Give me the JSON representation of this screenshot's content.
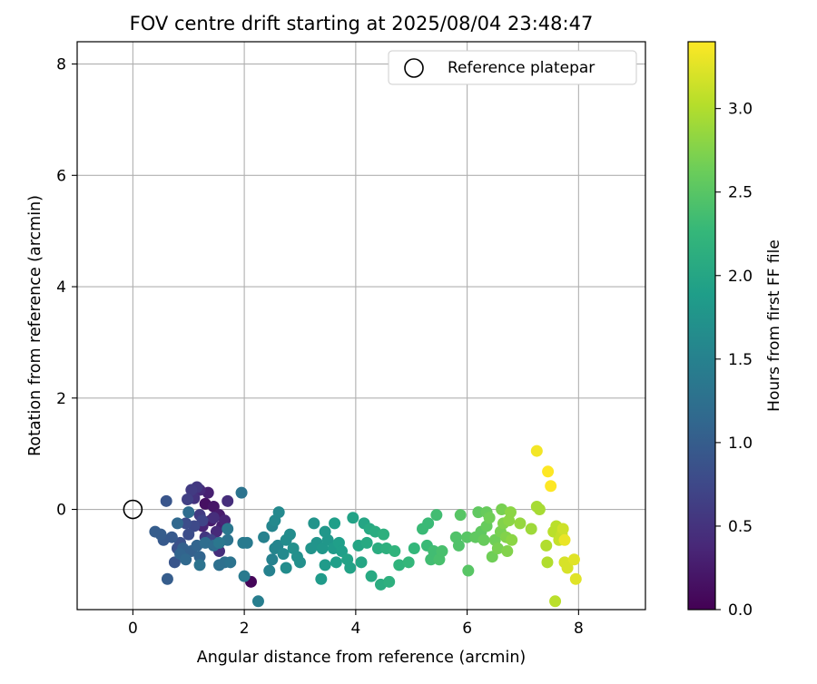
{
  "chart_data": {
    "type": "scatter",
    "title": "FOV centre drift starting at 2025/08/04 23:48:47",
    "xlabel": "Angular distance from reference (arcmin)",
    "ylabel": "Rotation from reference (arcmin)",
    "xlim": [
      -1.0,
      9.2
    ],
    "ylim": [
      -1.8,
      8.4
    ],
    "xticks": [
      "0",
      "2",
      "4",
      "6",
      "8"
    ],
    "yticks": [
      "0",
      "2",
      "4",
      "6",
      "8"
    ],
    "grid": true,
    "legend": {
      "placement": "top-right",
      "entries": [
        "Reference platepar"
      ]
    },
    "reference_point": {
      "x": 0,
      "y": 0
    },
    "colorbar": {
      "label": "Hours from first FF file",
      "min": 0.0,
      "max": 3.4,
      "ticks": [
        "0.0",
        "0.5",
        "1.0",
        "1.5",
        "2.0",
        "2.5",
        "3.0"
      ],
      "colormap": [
        "#440154",
        "#482878",
        "#3e4989",
        "#31688e",
        "#26828e",
        "#1f9e89",
        "#35b779",
        "#6ece58",
        "#b5de2b",
        "#fde725"
      ]
    },
    "points": [
      {
        "x": 2.12,
        "y": -1.3,
        "t": 0.05
      },
      {
        "x": 1.3,
        "y": 0.1,
        "t": 0.15
      },
      {
        "x": 1.45,
        "y": 0.05,
        "t": 0.2
      },
      {
        "x": 1.55,
        "y": -0.1,
        "t": 0.25
      },
      {
        "x": 1.4,
        "y": -0.2,
        "t": 0.25
      },
      {
        "x": 1.6,
        "y": -0.3,
        "t": 0.3
      },
      {
        "x": 1.35,
        "y": 0.3,
        "t": 0.3
      },
      {
        "x": 1.25,
        "y": -0.3,
        "t": 0.35
      },
      {
        "x": 1.65,
        "y": -0.2,
        "t": 0.35
      },
      {
        "x": 1.5,
        "y": -0.4,
        "t": 0.4
      },
      {
        "x": 1.2,
        "y": 0.35,
        "t": 0.4
      },
      {
        "x": 1.55,
        "y": -0.75,
        "t": 0.45
      },
      {
        "x": 1.45,
        "y": -0.15,
        "t": 0.45
      },
      {
        "x": 1.7,
        "y": 0.15,
        "t": 0.45
      },
      {
        "x": 1.1,
        "y": 0.2,
        "t": 0.5
      },
      {
        "x": 1.3,
        "y": -0.5,
        "t": 0.55
      },
      {
        "x": 1.15,
        "y": 0.4,
        "t": 0.55
      },
      {
        "x": 1.05,
        "y": 0.35,
        "t": 0.6
      },
      {
        "x": 1.2,
        "y": -0.1,
        "t": 0.6
      },
      {
        "x": 0.98,
        "y": 0.18,
        "t": 0.65
      },
      {
        "x": 1.4,
        "y": -0.55,
        "t": 0.7
      },
      {
        "x": 1.25,
        "y": -0.2,
        "t": 0.7
      },
      {
        "x": 1.1,
        "y": -0.3,
        "t": 0.75
      },
      {
        "x": 1.0,
        "y": -0.45,
        "t": 0.8
      },
      {
        "x": 0.95,
        "y": -0.25,
        "t": 0.8
      },
      {
        "x": 0.85,
        "y": -0.6,
        "t": 0.85
      },
      {
        "x": 0.8,
        "y": -0.7,
        "t": 0.85
      },
      {
        "x": 0.75,
        "y": -0.95,
        "t": 0.9
      },
      {
        "x": 0.6,
        "y": 0.15,
        "t": 0.9
      },
      {
        "x": 0.7,
        "y": -0.5,
        "t": 0.95
      },
      {
        "x": 0.55,
        "y": -0.55,
        "t": 0.95
      },
      {
        "x": 0.5,
        "y": -0.45,
        "t": 1.0
      },
      {
        "x": 0.4,
        "y": -0.4,
        "t": 1.0
      },
      {
        "x": 0.62,
        "y": -1.25,
        "t": 1.0
      },
      {
        "x": 0.9,
        "y": -0.7,
        "t": 1.05
      },
      {
        "x": 1.05,
        "y": -0.75,
        "t": 1.05
      },
      {
        "x": 1.15,
        "y": -0.65,
        "t": 1.1
      },
      {
        "x": 0.85,
        "y": -0.8,
        "t": 1.1
      },
      {
        "x": 1.2,
        "y": -0.85,
        "t": 1.1
      },
      {
        "x": 0.95,
        "y": -0.9,
        "t": 1.15
      },
      {
        "x": 0.8,
        "y": -0.25,
        "t": 1.15
      },
      {
        "x": 1.3,
        "y": -0.6,
        "t": 1.2
      },
      {
        "x": 1.45,
        "y": -0.65,
        "t": 1.2
      },
      {
        "x": 1.0,
        "y": -0.05,
        "t": 1.2
      },
      {
        "x": 1.55,
        "y": -1.0,
        "t": 1.25
      },
      {
        "x": 1.65,
        "y": -0.95,
        "t": 1.25
      },
      {
        "x": 1.75,
        "y": -0.95,
        "t": 1.3
      },
      {
        "x": 1.2,
        "y": -1.0,
        "t": 1.3
      },
      {
        "x": 1.95,
        "y": 0.3,
        "t": 1.3
      },
      {
        "x": 1.7,
        "y": -0.55,
        "t": 1.3
      },
      {
        "x": 1.7,
        "y": -0.35,
        "t": 1.35
      },
      {
        "x": 1.55,
        "y": -0.6,
        "t": 1.35
      },
      {
        "x": 1.98,
        "y": -0.6,
        "t": 1.4
      },
      {
        "x": 2.05,
        "y": -0.6,
        "t": 1.4
      },
      {
        "x": 2.0,
        "y": -1.2,
        "t": 1.4
      },
      {
        "x": 2.25,
        "y": -1.65,
        "t": 1.45
      },
      {
        "x": 2.35,
        "y": -0.5,
        "t": 1.5
      },
      {
        "x": 2.5,
        "y": -0.9,
        "t": 1.5
      },
      {
        "x": 2.45,
        "y": -1.1,
        "t": 1.5
      },
      {
        "x": 2.55,
        "y": -0.7,
        "t": 1.55
      },
      {
        "x": 2.6,
        "y": -0.65,
        "t": 1.55
      },
      {
        "x": 2.5,
        "y": -0.3,
        "t": 1.55
      },
      {
        "x": 2.55,
        "y": -0.2,
        "t": 1.6
      },
      {
        "x": 2.62,
        "y": -0.05,
        "t": 1.6
      },
      {
        "x": 2.7,
        "y": -0.8,
        "t": 1.6
      },
      {
        "x": 2.75,
        "y": -0.55,
        "t": 1.65
      },
      {
        "x": 2.82,
        "y": -0.45,
        "t": 1.65
      },
      {
        "x": 2.75,
        "y": -1.05,
        "t": 1.65
      },
      {
        "x": 2.88,
        "y": -0.7,
        "t": 1.7
      },
      {
        "x": 2.95,
        "y": -0.85,
        "t": 1.7
      },
      {
        "x": 3.0,
        "y": -0.95,
        "t": 1.7
      },
      {
        "x": 3.2,
        "y": -0.7,
        "t": 1.75
      },
      {
        "x": 3.3,
        "y": -0.6,
        "t": 1.75
      },
      {
        "x": 3.25,
        "y": -0.25,
        "t": 1.75
      },
      {
        "x": 3.4,
        "y": -0.7,
        "t": 1.8
      },
      {
        "x": 3.5,
        "y": -0.55,
        "t": 1.8
      },
      {
        "x": 3.45,
        "y": -0.4,
        "t": 1.8
      },
      {
        "x": 3.38,
        "y": -1.25,
        "t": 1.85
      },
      {
        "x": 3.45,
        "y": -1.0,
        "t": 1.85
      },
      {
        "x": 3.6,
        "y": -0.7,
        "t": 1.85
      },
      {
        "x": 3.62,
        "y": -0.25,
        "t": 1.9
      },
      {
        "x": 3.7,
        "y": -0.6,
        "t": 1.9
      },
      {
        "x": 3.75,
        "y": -0.75,
        "t": 1.9
      },
      {
        "x": 3.65,
        "y": -0.95,
        "t": 1.9
      },
      {
        "x": 3.85,
        "y": -0.9,
        "t": 1.95
      },
      {
        "x": 3.9,
        "y": -1.05,
        "t": 1.95
      },
      {
        "x": 3.95,
        "y": -0.15,
        "t": 1.95
      },
      {
        "x": 4.05,
        "y": -0.65,
        "t": 2.0
      },
      {
        "x": 4.1,
        "y": -0.95,
        "t": 2.0
      },
      {
        "x": 4.15,
        "y": -0.25,
        "t": 2.0
      },
      {
        "x": 4.25,
        "y": -0.35,
        "t": 2.05
      },
      {
        "x": 4.2,
        "y": -0.6,
        "t": 2.05
      },
      {
        "x": 4.28,
        "y": -1.2,
        "t": 2.05
      },
      {
        "x": 4.35,
        "y": -0.4,
        "t": 2.1
      },
      {
        "x": 4.4,
        "y": -0.7,
        "t": 2.1
      },
      {
        "x": 4.45,
        "y": -1.35,
        "t": 2.1
      },
      {
        "x": 4.5,
        "y": -0.45,
        "t": 2.15
      },
      {
        "x": 4.55,
        "y": -0.7,
        "t": 2.15
      },
      {
        "x": 4.6,
        "y": -1.3,
        "t": 2.15
      },
      {
        "x": 4.7,
        "y": -0.75,
        "t": 2.2
      },
      {
        "x": 4.78,
        "y": -1.0,
        "t": 2.2
      },
      {
        "x": 4.95,
        "y": -0.95,
        "t": 2.25
      },
      {
        "x": 5.05,
        "y": -0.7,
        "t": 2.25
      },
      {
        "x": 5.2,
        "y": -0.35,
        "t": 2.3
      },
      {
        "x": 5.3,
        "y": -0.25,
        "t": 2.3
      },
      {
        "x": 5.28,
        "y": -0.65,
        "t": 2.3
      },
      {
        "x": 5.35,
        "y": -0.9,
        "t": 2.35
      },
      {
        "x": 5.4,
        "y": -0.75,
        "t": 2.35
      },
      {
        "x": 5.45,
        "y": -0.1,
        "t": 2.35
      },
      {
        "x": 5.5,
        "y": -0.9,
        "t": 2.4
      },
      {
        "x": 5.55,
        "y": -0.75,
        "t": 2.4
      },
      {
        "x": 5.8,
        "y": -0.5,
        "t": 2.45
      },
      {
        "x": 5.85,
        "y": -0.65,
        "t": 2.45
      },
      {
        "x": 5.88,
        "y": -0.1,
        "t": 2.5
      },
      {
        "x": 6.0,
        "y": -0.5,
        "t": 2.5
      },
      {
        "x": 6.02,
        "y": -1.1,
        "t": 2.5
      },
      {
        "x": 6.15,
        "y": -0.5,
        "t": 2.55
      },
      {
        "x": 6.2,
        "y": -0.05,
        "t": 2.55
      },
      {
        "x": 6.25,
        "y": -0.4,
        "t": 2.55
      },
      {
        "x": 6.3,
        "y": -0.55,
        "t": 2.6
      },
      {
        "x": 6.35,
        "y": -0.3,
        "t": 2.6
      },
      {
        "x": 6.35,
        "y": -0.05,
        "t": 2.6
      },
      {
        "x": 6.4,
        "y": -0.15,
        "t": 2.65
      },
      {
        "x": 6.45,
        "y": -0.85,
        "t": 2.65
      },
      {
        "x": 6.5,
        "y": -0.55,
        "t": 2.65
      },
      {
        "x": 6.55,
        "y": -0.7,
        "t": 2.7
      },
      {
        "x": 6.6,
        "y": -0.4,
        "t": 2.7
      },
      {
        "x": 6.62,
        "y": 0.0,
        "t": 2.7
      },
      {
        "x": 6.65,
        "y": -0.25,
        "t": 2.75
      },
      {
        "x": 6.7,
        "y": -0.5,
        "t": 2.75
      },
      {
        "x": 6.72,
        "y": -0.75,
        "t": 2.75
      },
      {
        "x": 6.75,
        "y": -0.2,
        "t": 2.8
      },
      {
        "x": 6.8,
        "y": -0.55,
        "t": 2.8
      },
      {
        "x": 6.78,
        "y": -0.05,
        "t": 2.8
      },
      {
        "x": 6.95,
        "y": -0.25,
        "t": 2.85
      },
      {
        "x": 7.15,
        "y": -0.35,
        "t": 2.9
      },
      {
        "x": 7.25,
        "y": 0.05,
        "t": 2.95
      },
      {
        "x": 7.3,
        "y": 0.0,
        "t": 2.95
      },
      {
        "x": 7.42,
        "y": -0.65,
        "t": 3.0
      },
      {
        "x": 7.44,
        "y": -0.95,
        "t": 3.0
      },
      {
        "x": 7.55,
        "y": -0.4,
        "t": 3.05
      },
      {
        "x": 7.6,
        "y": -0.3,
        "t": 3.05
      },
      {
        "x": 7.58,
        "y": -1.65,
        "t": 3.05
      },
      {
        "x": 7.65,
        "y": -0.55,
        "t": 3.1
      },
      {
        "x": 7.7,
        "y": -0.45,
        "t": 3.1
      },
      {
        "x": 7.72,
        "y": -0.35,
        "t": 3.15
      },
      {
        "x": 7.75,
        "y": -0.95,
        "t": 3.2
      },
      {
        "x": 7.8,
        "y": -1.05,
        "t": 3.2
      },
      {
        "x": 7.92,
        "y": -0.9,
        "t": 3.25
      },
      {
        "x": 7.95,
        "y": -1.25,
        "t": 3.25
      },
      {
        "x": 7.75,
        "y": -0.55,
        "t": 3.3
      },
      {
        "x": 7.25,
        "y": 1.05,
        "t": 3.35
      },
      {
        "x": 7.45,
        "y": 0.68,
        "t": 3.4
      },
      {
        "x": 7.5,
        "y": 0.42,
        "t": 3.4
      }
    ]
  }
}
